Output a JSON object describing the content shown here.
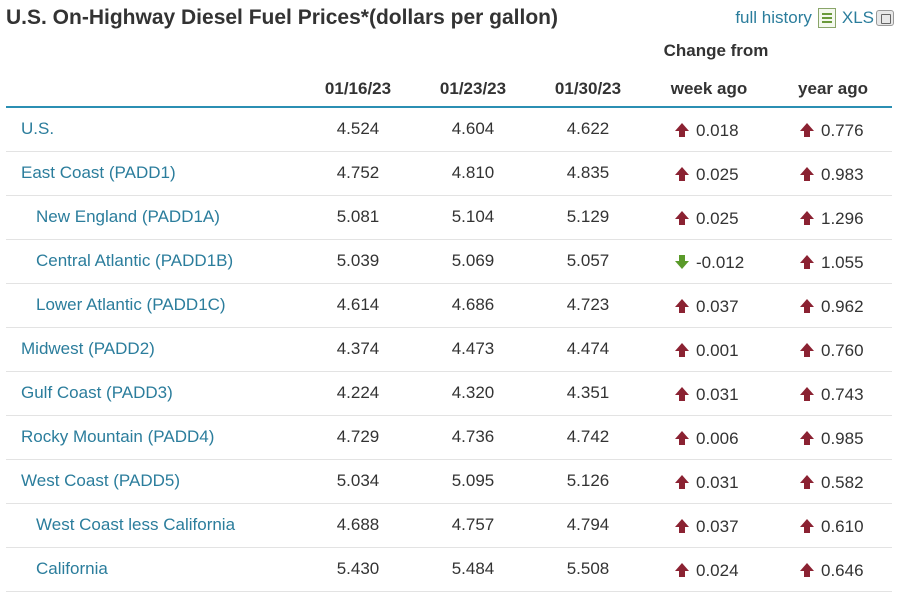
{
  "title": "U.S. On-Highway Diesel Fuel Prices*(dollars per gallon)",
  "links": {
    "history": "full history",
    "xls": "XLS"
  },
  "colors": {
    "up": "#8b2232",
    "down": "#5a9a2a",
    "link": "#2b7d9c",
    "rule": "#2b8fb3"
  },
  "header": {
    "change_from": "Change from",
    "dates": [
      "01/16/23",
      "01/23/23",
      "01/30/23"
    ],
    "week_ago": "week ago",
    "year_ago": "year ago"
  },
  "rows": [
    {
      "name": "U.S.",
      "indent": false,
      "v": [
        "4.524",
        "4.604",
        "4.622"
      ],
      "week": "0.018",
      "week_dir": "up",
      "year": "0.776",
      "year_dir": "up"
    },
    {
      "name": "East Coast (PADD1)",
      "indent": false,
      "v": [
        "4.752",
        "4.810",
        "4.835"
      ],
      "week": "0.025",
      "week_dir": "up",
      "year": "0.983",
      "year_dir": "up"
    },
    {
      "name": "New England (PADD1A)",
      "indent": true,
      "v": [
        "5.081",
        "5.104",
        "5.129"
      ],
      "week": "0.025",
      "week_dir": "up",
      "year": "1.296",
      "year_dir": "up"
    },
    {
      "name": "Central Atlantic (PADD1B)",
      "indent": true,
      "v": [
        "5.039",
        "5.069",
        "5.057"
      ],
      "week": "-0.012",
      "week_dir": "down",
      "year": "1.055",
      "year_dir": "up"
    },
    {
      "name": "Lower Atlantic (PADD1C)",
      "indent": true,
      "v": [
        "4.614",
        "4.686",
        "4.723"
      ],
      "week": "0.037",
      "week_dir": "up",
      "year": "0.962",
      "year_dir": "up"
    },
    {
      "name": "Midwest (PADD2)",
      "indent": false,
      "v": [
        "4.374",
        "4.473",
        "4.474"
      ],
      "week": "0.001",
      "week_dir": "up",
      "year": "0.760",
      "year_dir": "up"
    },
    {
      "name": "Gulf Coast (PADD3)",
      "indent": false,
      "v": [
        "4.224",
        "4.320",
        "4.351"
      ],
      "week": "0.031",
      "week_dir": "up",
      "year": "0.743",
      "year_dir": "up"
    },
    {
      "name": "Rocky Mountain (PADD4)",
      "indent": false,
      "v": [
        "4.729",
        "4.736",
        "4.742"
      ],
      "week": "0.006",
      "week_dir": "up",
      "year": "0.985",
      "year_dir": "up"
    },
    {
      "name": "West Coast (PADD5)",
      "indent": false,
      "v": [
        "5.034",
        "5.095",
        "5.126"
      ],
      "week": "0.031",
      "week_dir": "up",
      "year": "0.582",
      "year_dir": "up"
    },
    {
      "name": "West Coast less California",
      "indent": true,
      "v": [
        "4.688",
        "4.757",
        "4.794"
      ],
      "week": "0.037",
      "week_dir": "up",
      "year": "0.610",
      "year_dir": "up"
    },
    {
      "name": "California",
      "indent": true,
      "v": [
        "5.430",
        "5.484",
        "5.508"
      ],
      "week": "0.024",
      "week_dir": "up",
      "year": "0.646",
      "year_dir": "up"
    }
  ]
}
